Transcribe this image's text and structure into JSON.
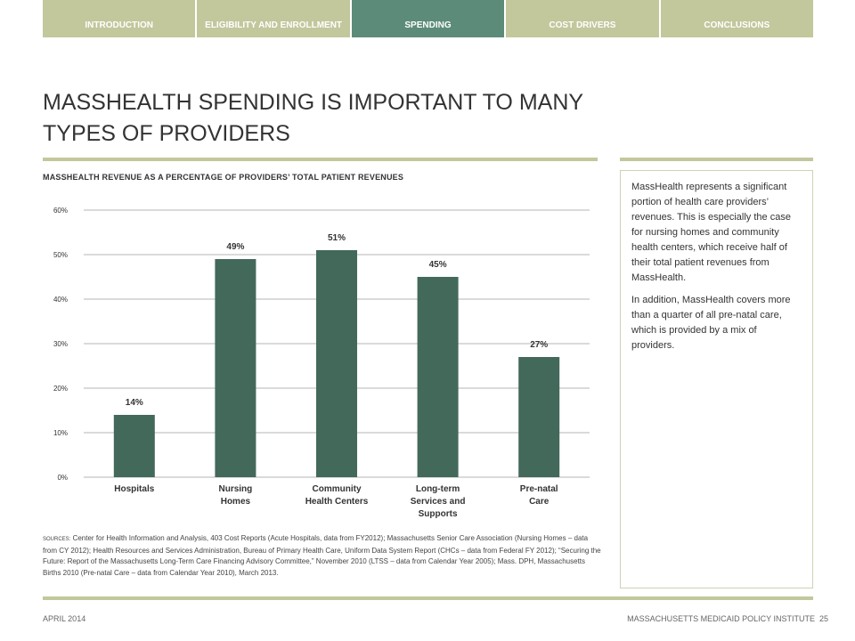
{
  "nav": {
    "tabs": [
      {
        "label": "INTRODUCTION",
        "active": false
      },
      {
        "label": "ELIGIBILITY AND ENROLLMENT",
        "active": false
      },
      {
        "label": "SPENDING",
        "active": true
      },
      {
        "label": "COST DRIVERS",
        "active": false
      },
      {
        "label": "CONCLUSIONS",
        "active": false
      }
    ]
  },
  "title": "MASSHEALTH SPENDING IS IMPORTANT TO MANY TYPES OF PROVIDERS",
  "chart_title": "MASSHEALTH REVENUE AS A PERCENTAGE OF PROVIDERS’ TOTAL PATIENT REVENUES",
  "chart_data": {
    "type": "bar",
    "categories": [
      "Hospitals",
      "Nursing Homes",
      "Community Health Centers",
      "Long-term Services and Supports",
      "Pre-natal Care"
    ],
    "category_lines": [
      [
        "Hospitals"
      ],
      [
        "Nursing",
        "Homes"
      ],
      [
        "Community",
        "Health Centers"
      ],
      [
        "Long-term",
        "Services and",
        "Supports"
      ],
      [
        "Pre-natal",
        "Care"
      ]
    ],
    "values": [
      14,
      49,
      51,
      45,
      27
    ],
    "data_labels": [
      "14%",
      "49%",
      "51%",
      "45%",
      "27%"
    ],
    "ylim": [
      0,
      60
    ],
    "yticks": [
      0,
      10,
      20,
      30,
      40,
      50,
      60
    ],
    "ytick_labels": [
      "0%",
      "10%",
      "20%",
      "30%",
      "40%",
      "50%",
      "60%"
    ],
    "grid": true,
    "bar_color": "#43695a"
  },
  "sidebar": {
    "para1": "MassHealth represents a significant portion of health care providers’ revenues. This is especially the case for nursing homes and community health centers, which receive half of their total patient revenues from MassHealth.",
    "para2": "In addition, MassHealth covers more than a quarter of all pre-natal care, which is provided by a mix of providers."
  },
  "sources": {
    "label": "SOURCES:",
    "text": "Center for Health Information and Analysis, 403 Cost Reports (Acute Hospitals, data from FY2012); Massachusetts Senior Care Association (Nursing Homes – data from CY 2012); Health Resources and Services Administration, Bureau of Primary Health Care, Uniform Data System Report (CHCs – data from Federal FY 2012); “Securing the Future: Report of the Massachusetts Long-Term Care Financing Advisory Committee,” November 2010 (LTSS – data from Calendar Year 2005); Mass. DPH, Massachusetts Births 2010 (Pre-natal Care – data from Calendar Year 2010), March 2013."
  },
  "footer": {
    "date": "APRIL 2014",
    "org": "MASSACHUSETTS MEDICAID POLICY INSTITUTE",
    "page": "25"
  },
  "colors": {
    "nav": "#c3c79c",
    "nav_active": "#5c8c79",
    "bar": "#43695a",
    "rule": "#c3c79c"
  }
}
